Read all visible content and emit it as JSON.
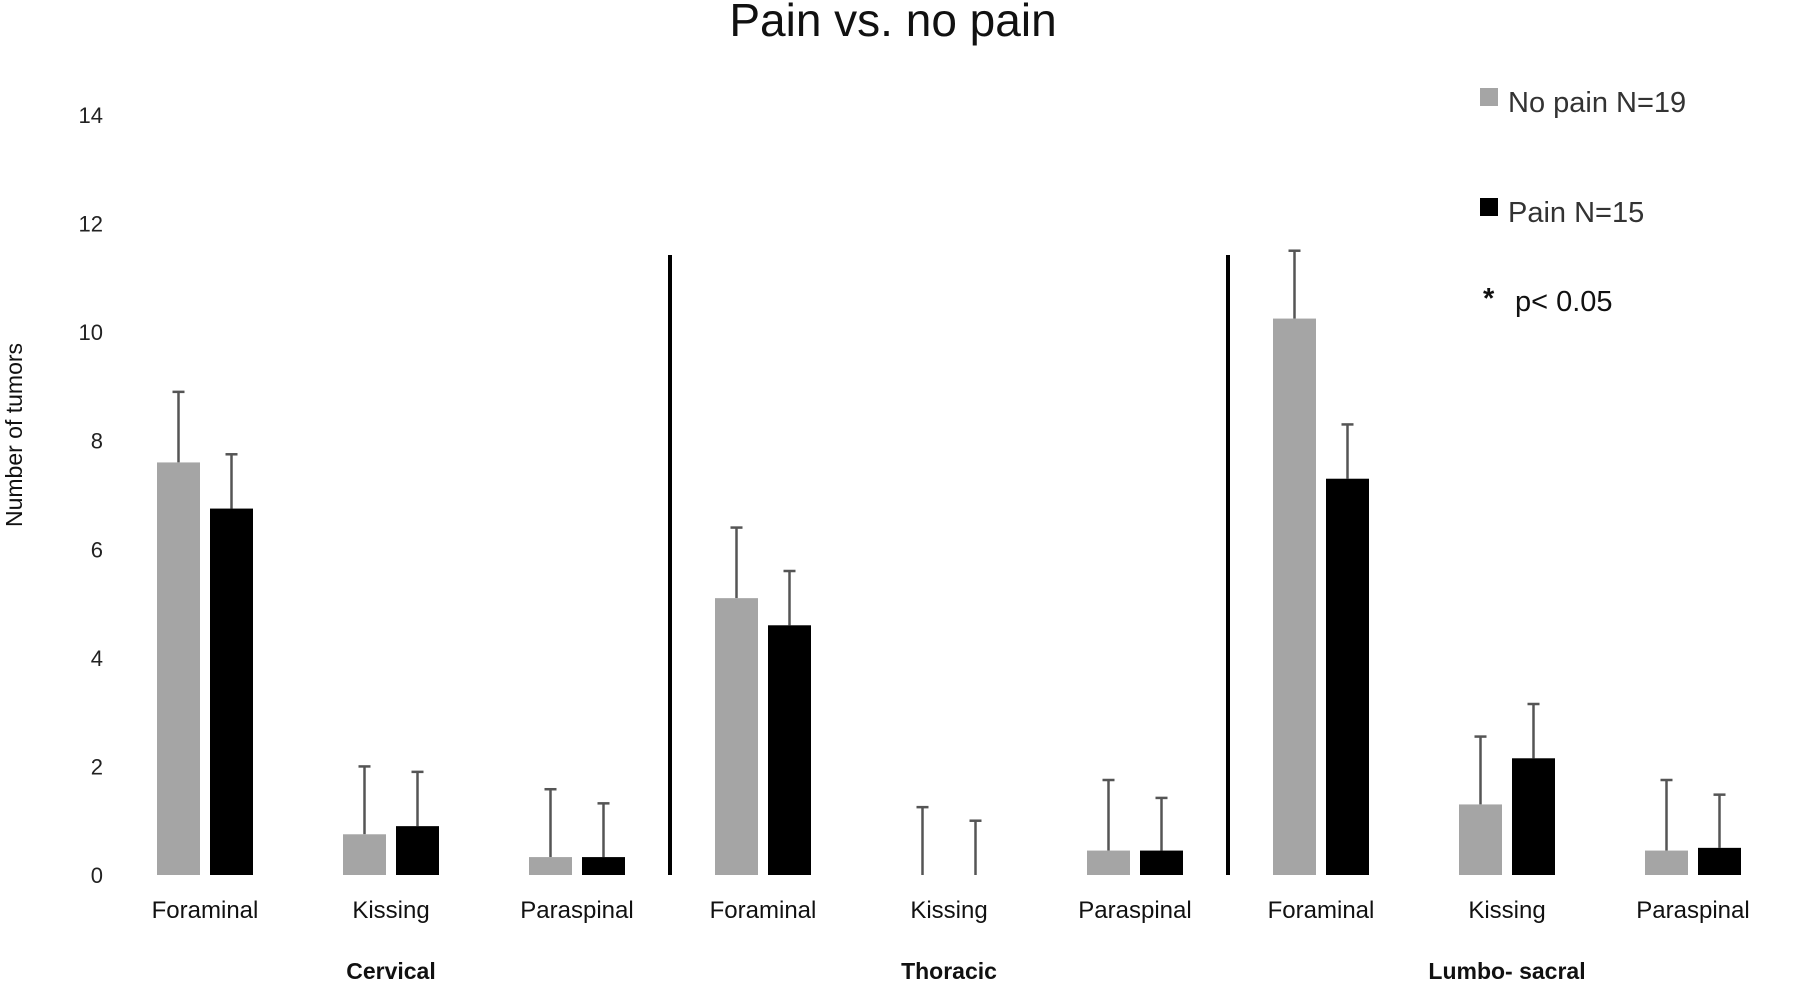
{
  "chart_data": {
    "type": "bar",
    "title": "Pain vs. no pain",
    "ylabel": "Number of tumors",
    "xlabel": "",
    "ylim": [
      0,
      14
    ],
    "yticks": [
      0,
      2,
      4,
      6,
      8,
      10,
      12,
      14
    ],
    "grid": false,
    "legend_position": "top-right",
    "note": {
      "symbol": "*",
      "text": "p< 0.05"
    },
    "groups": [
      {
        "label": "Cervical",
        "categories": [
          "Foraminal",
          "Kissing",
          "Paraspinal"
        ]
      },
      {
        "label": "Thoracic",
        "categories": [
          "Foraminal",
          "Kissing",
          "Paraspinal"
        ]
      },
      {
        "label": "Lumbo- sacral",
        "categories": [
          "Foraminal",
          "Kissing",
          "Paraspinal"
        ]
      }
    ],
    "categories": [
      "Foraminal",
      "Kissing",
      "Paraspinal",
      "Foraminal",
      "Kissing",
      "Paraspinal",
      "Foraminal",
      "Kissing",
      "Paraspinal"
    ],
    "series": [
      {
        "name": "No pain N=19",
        "color": "#a5a5a5",
        "values": [
          7.6,
          0.75,
          0.33,
          5.1,
          0,
          0.45,
          10.25,
          1.3,
          0.45
        ],
        "error_upper": [
          8.9,
          2.0,
          1.58,
          6.4,
          1.25,
          1.75,
          11.5,
          2.55,
          1.75
        ]
      },
      {
        "name": "Pain N=15",
        "color": "#000000",
        "values": [
          6.75,
          0.9,
          0.33,
          4.6,
          0,
          0.45,
          7.3,
          2.15,
          0.5
        ],
        "error_upper": [
          7.75,
          1.9,
          1.32,
          5.6,
          1.0,
          1.42,
          8.3,
          3.15,
          1.48
        ]
      }
    ]
  }
}
